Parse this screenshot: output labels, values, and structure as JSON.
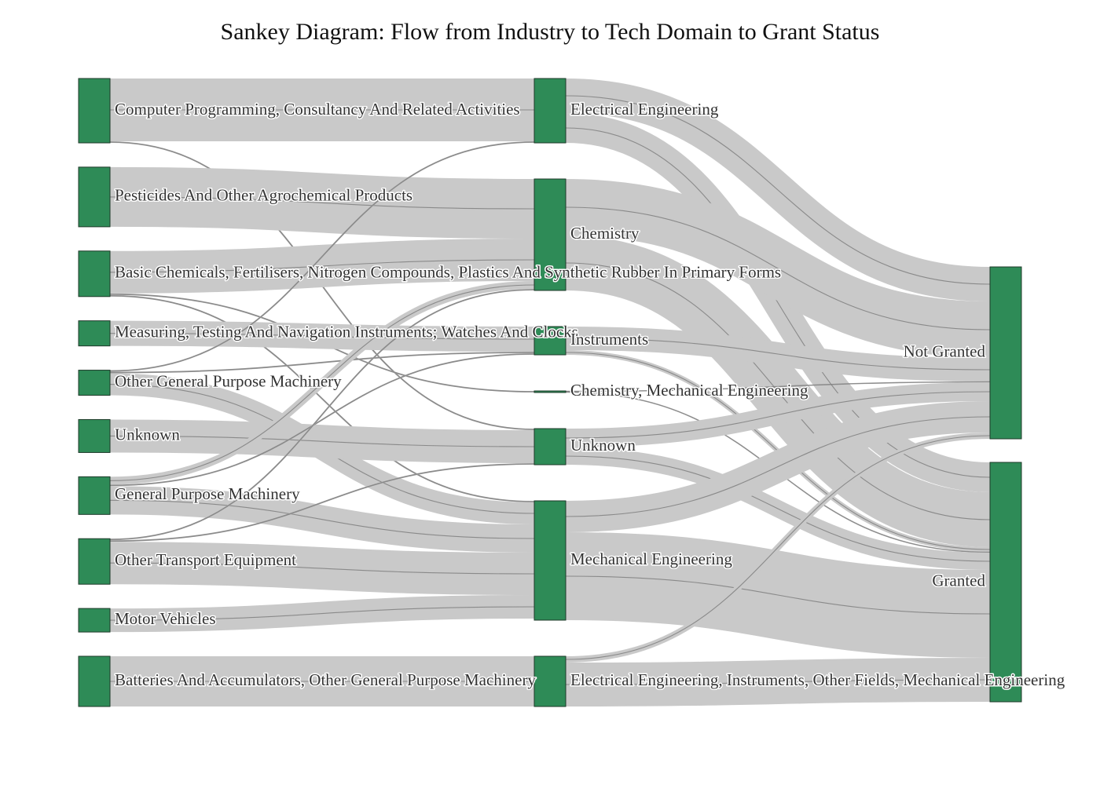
{
  "title": "Sankey Diagram: Flow from Industry to Tech Domain to Grant Status",
  "colors": {
    "node": "#2e8b57",
    "node_border": "#1f3a2a",
    "link": "#c9c9c9",
    "link_edge": "#555555",
    "text": "#333333"
  },
  "chart_data": {
    "type": "sankey",
    "title": "Sankey Diagram: Flow from Industry to Tech Domain to Grant Status",
    "nodes": [
      {
        "id": "cp",
        "label": "Computer Programming, Consultancy And Related Activities",
        "column": 0
      },
      {
        "id": "pest",
        "label": "Pesticides And Other Agrochemical Products",
        "column": 0
      },
      {
        "id": "bc",
        "label": "Basic Chemicals, Fertilisers, Nitrogen Compounds, Plastics And Synthetic Rubber In Primary Forms",
        "column": 0
      },
      {
        "id": "mt",
        "label": "Measuring, Testing And Navigation Instruments; Watches And Clocks",
        "column": 0
      },
      {
        "id": "ogpm",
        "label": "Other General Purpose Machinery",
        "column": 0
      },
      {
        "id": "unk1",
        "label": "Unknown",
        "column": 0
      },
      {
        "id": "gpm",
        "label": "General Purpose Machinery",
        "column": 0
      },
      {
        "id": "ote",
        "label": "Other Transport Equipment",
        "column": 0
      },
      {
        "id": "mv",
        "label": "Motor Vehicles",
        "column": 0
      },
      {
        "id": "bat",
        "label": "Batteries And Accumulators, Other General Purpose Machinery",
        "column": 0
      },
      {
        "id": "ee",
        "label": "Electrical Engineering",
        "column": 1
      },
      {
        "id": "chem",
        "label": "Chemistry",
        "column": 1
      },
      {
        "id": "inst",
        "label": "Instruments",
        "column": 1
      },
      {
        "id": "cme",
        "label": "Chemistry, Mechanical Engineering",
        "column": 1
      },
      {
        "id": "unk2",
        "label": "Unknown",
        "column": 1
      },
      {
        "id": "me",
        "label": "Mechanical Engineering",
        "column": 1
      },
      {
        "id": "eeio",
        "label": "Electrical Engineering, Instruments, Other Fields, Mechanical Engineering",
        "column": 1
      },
      {
        "id": "ng",
        "label": "Not Granted",
        "column": 2
      },
      {
        "id": "gr",
        "label": "Granted",
        "column": 2
      }
    ],
    "links": [
      {
        "source": "cp",
        "target": "ee",
        "value": 40
      },
      {
        "source": "cp",
        "target": "unk2",
        "value": 1
      },
      {
        "source": "pest",
        "target": "chem",
        "value": 38
      },
      {
        "source": "bc",
        "target": "chem",
        "value": 27
      },
      {
        "source": "bc",
        "target": "cme",
        "value": 1
      },
      {
        "source": "bc",
        "target": "me",
        "value": 1
      },
      {
        "source": "mt",
        "target": "inst",
        "value": 16
      },
      {
        "source": "ogpm",
        "target": "ee",
        "value": 1
      },
      {
        "source": "ogpm",
        "target": "inst",
        "value": 1
      },
      {
        "source": "ogpm",
        "target": "me",
        "value": 14
      },
      {
        "source": "unk1",
        "target": "unk2",
        "value": 21
      },
      {
        "source": "gpm",
        "target": "chem",
        "value": 5
      },
      {
        "source": "gpm",
        "target": "inst",
        "value": 1
      },
      {
        "source": "gpm",
        "target": "me",
        "value": 18
      },
      {
        "source": "ote",
        "target": "unk2",
        "value": 1
      },
      {
        "source": "ote",
        "target": "chem",
        "value": 1
      },
      {
        "source": "ote",
        "target": "me",
        "value": 27
      },
      {
        "source": "mv",
        "target": "me",
        "value": 15
      },
      {
        "source": "bat",
        "target": "eeio",
        "value": 32
      },
      {
        "source": "ee",
        "target": "ng",
        "value": 22
      },
      {
        "source": "ee",
        "target": "gr",
        "value": 19
      },
      {
        "source": "chem",
        "target": "ng",
        "value": 36
      },
      {
        "source": "chem",
        "target": "gr",
        "value": 35
      },
      {
        "source": "inst",
        "target": "ng",
        "value": 15
      },
      {
        "source": "inst",
        "target": "gr",
        "value": 3
      },
      {
        "source": "cme",
        "target": "ng",
        "value": 0.5
      },
      {
        "source": "cme",
        "target": "gr",
        "value": 0.5
      },
      {
        "source": "unk2",
        "target": "ng",
        "value": 12
      },
      {
        "source": "unk2",
        "target": "gr",
        "value": 11
      },
      {
        "source": "me",
        "target": "ng",
        "value": 20
      },
      {
        "source": "me",
        "target": "gr",
        "value": 56
      },
      {
        "source": "eeio",
        "target": "ng",
        "value": 4
      },
      {
        "source": "eeio",
        "target": "gr",
        "value": 28
      }
    ]
  }
}
